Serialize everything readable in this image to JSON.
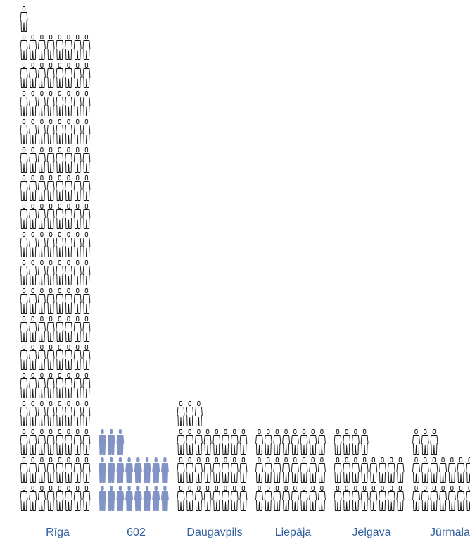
{
  "chart_data": {
    "type": "pictogram",
    "title": "",
    "xlabel": "",
    "ylabel": "",
    "categories": [
      "Rīga",
      "602",
      "Daugavpils",
      "Liepāja",
      "Jelgava",
      "Jūrmala"
    ],
    "icons_per_row": 8,
    "series": [
      {
        "values": [
          137,
          19,
          27,
          24,
          20,
          19
        ]
      }
    ],
    "highlight": "602",
    "colors": {
      "outline": "#111111",
      "fill": "#ffffff",
      "highlight_fill": "#8294c6",
      "label": "#2f5f9e"
    },
    "icon": "person-icon",
    "grid": false,
    "legend": "none"
  }
}
